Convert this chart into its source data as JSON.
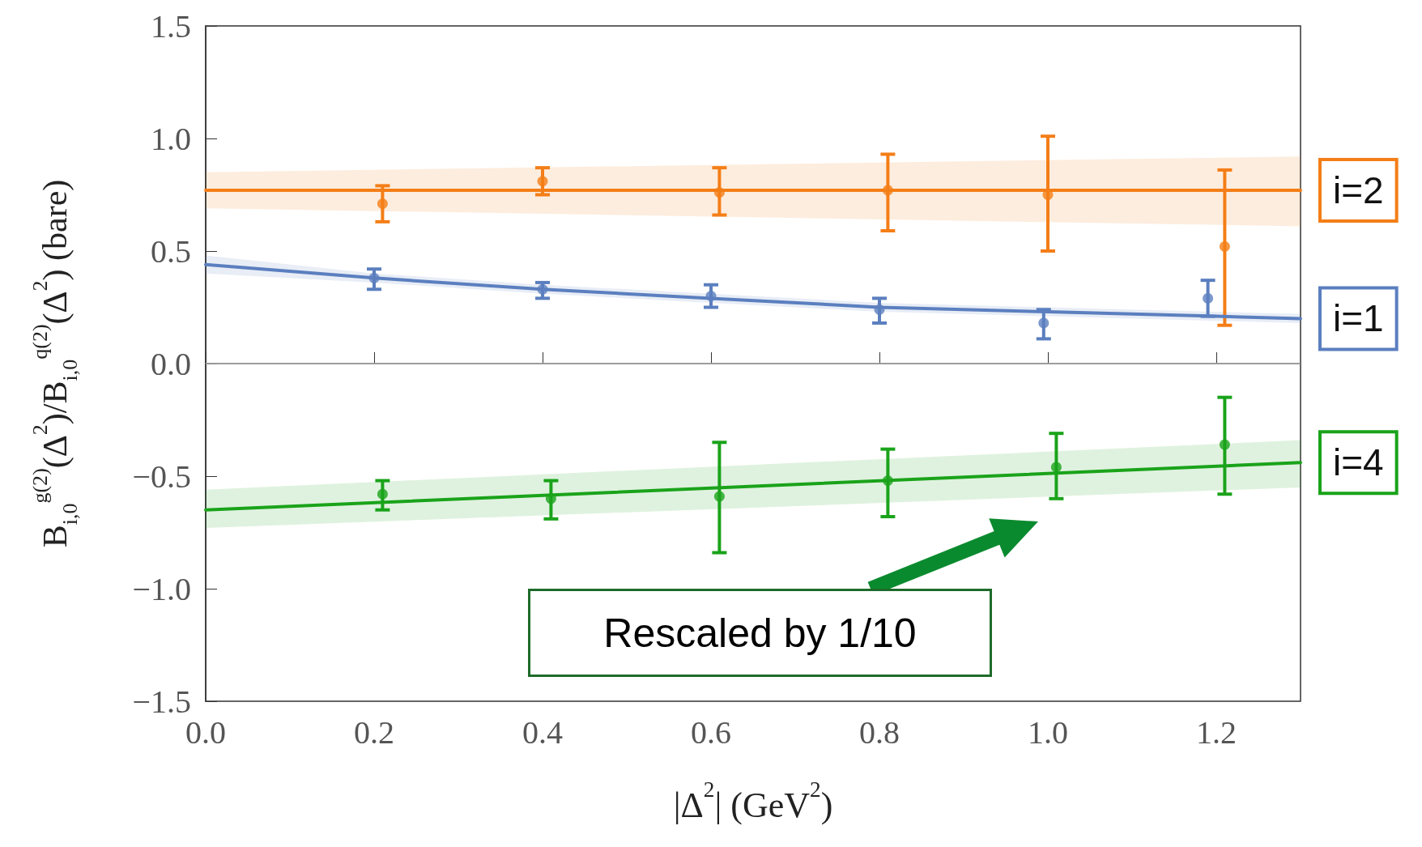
{
  "chart_data": {
    "type": "scatter",
    "xlabel": "|Δ$^{2}$| (GeV$^{2}$)",
    "ylabel": "B$_{i,0}$$^{g(2)}$(Δ$^{2}$)/B$_{i,0}$$^{q(2)}$(Δ$^{2}$) (bare)",
    "xlim": [
      0,
      1.3
    ],
    "xticks": [
      {
        "value": 0,
        "label": "0.0"
      },
      {
        "value": 0.2,
        "label": "0.2"
      },
      {
        "value": 0.4,
        "label": "0.4"
      },
      {
        "value": 0.6,
        "label": "0.6"
      },
      {
        "value": 0.8,
        "label": "0.8"
      },
      {
        "value": 1,
        "label": "1.0"
      },
      {
        "value": 1.2,
        "label": "1.2"
      }
    ],
    "ylim": [
      -1.5,
      1.5
    ],
    "yticks": [
      {
        "value": -1.5,
        "label": "−1.5"
      },
      {
        "value": -1,
        "label": "−1.0"
      },
      {
        "value": -0.5,
        "label": "−0.5"
      },
      {
        "value": 0,
        "label": "0.0"
      },
      {
        "value": 0.5,
        "label": "0.5"
      },
      {
        "value": 1,
        "label": "1.0"
      },
      {
        "value": 1.5,
        "label": "1.5"
      }
    ],
    "marker": "circle",
    "ref_lines": [
      {
        "axis": "y",
        "value": 0,
        "color": "#b0b0b0"
      }
    ],
    "annotations": [
      "Rescaled by 1/10"
    ],
    "series": [
      {
        "type": "line",
        "name": "i=2",
        "color": "#f47e17",
        "marker": "none",
        "line_style": "solid",
        "x": [
          0,
          1.3
        ],
        "values": [
          0.77,
          0.77
        ],
        "lower": [
          0.69,
          0.61
        ],
        "upper": [
          0.85,
          0.92
        ]
      },
      {
        "color": "#f47e17",
        "x": [
          0.21,
          0.4,
          0.61,
          0.81,
          1.0,
          1.21
        ],
        "values": [
          0.71,
          0.81,
          0.76,
          0.77,
          0.75,
          0.52
        ],
        "errors": [
          [
            0.63,
            0.79
          ],
          [
            0.75,
            0.87
          ],
          [
            0.66,
            0.87
          ],
          [
            0.59,
            0.93
          ],
          [
            0.5,
            1.01
          ],
          [
            0.17,
            0.86
          ]
        ]
      },
      {
        "type": "line",
        "name": "i=1",
        "color": "#5b7fbf",
        "marker": "none",
        "line_style": "solid",
        "x": [
          0,
          0.2,
          0.4,
          0.6,
          0.8,
          1.0,
          1.2,
          1.3
        ],
        "values": [
          0.44,
          0.38,
          0.33,
          0.29,
          0.25,
          0.23,
          0.21,
          0.2
        ],
        "lower": [
          0.4,
          0.36,
          0.31,
          0.27,
          0.23,
          0.21,
          0.19,
          0.18
        ],
        "upper": [
          0.48,
          0.4,
          0.35,
          0.31,
          0.27,
          0.25,
          0.23,
          0.22
        ]
      },
      {
        "color": "#5b7fbf",
        "x": [
          0.2,
          0.4,
          0.6,
          0.8,
          0.995,
          1.19
        ],
        "values": [
          0.38,
          0.33,
          0.3,
          0.24,
          0.18,
          0.29
        ],
        "errors": [
          [
            0.33,
            0.42
          ],
          [
            0.29,
            0.36
          ],
          [
            0.25,
            0.35
          ],
          [
            0.18,
            0.29
          ],
          [
            0.11,
            0.24
          ],
          [
            0.21,
            0.37
          ]
        ]
      },
      {
        "type": "line",
        "name": "i=4",
        "color": "#1aa31a",
        "marker": "none",
        "line_style": "solid",
        "x": [
          0,
          1.3
        ],
        "values": [
          -0.65,
          -0.44
        ],
        "lower": [
          -0.73,
          -0.55
        ],
        "upper": [
          -0.56,
          -0.34
        ]
      },
      {
        "color": "#1aa31a",
        "x": [
          0.21,
          0.41,
          0.61,
          0.81,
          1.01,
          1.21
        ],
        "values": [
          -0.58,
          -0.6,
          -0.59,
          -0.52,
          -0.46,
          -0.36
        ],
        "errors": [
          [
            -0.65,
            -0.52
          ],
          [
            -0.69,
            -0.52
          ],
          [
            -0.84,
            -0.35
          ],
          [
            -0.68,
            -0.38
          ],
          [
            -0.6,
            -0.31
          ],
          [
            -0.58,
            -0.15
          ]
        ]
      }
    ]
  }
}
